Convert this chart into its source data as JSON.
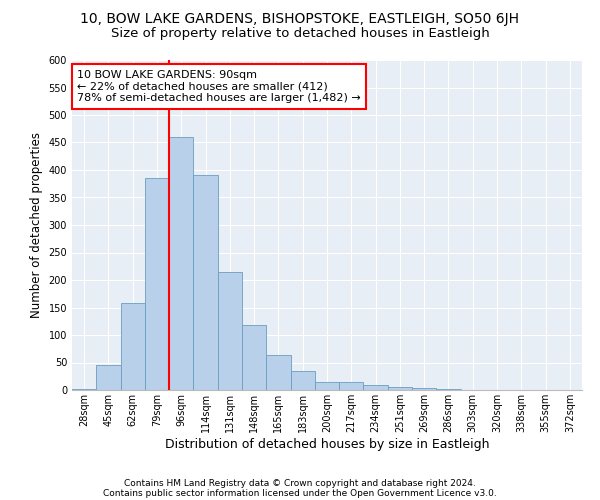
{
  "title": "10, BOW LAKE GARDENS, BISHOPSTOKE, EASTLEIGH, SO50 6JH",
  "subtitle": "Size of property relative to detached houses in Eastleigh",
  "xlabel": "Distribution of detached houses by size in Eastleigh",
  "ylabel": "Number of detached properties",
  "categories": [
    "28sqm",
    "45sqm",
    "62sqm",
    "79sqm",
    "96sqm",
    "114sqm",
    "131sqm",
    "148sqm",
    "165sqm",
    "183sqm",
    "200sqm",
    "217sqm",
    "234sqm",
    "251sqm",
    "269sqm",
    "286sqm",
    "303sqm",
    "320sqm",
    "338sqm",
    "355sqm",
    "372sqm"
  ],
  "values": [
    2,
    45,
    158,
    386,
    460,
    390,
    215,
    118,
    63,
    35,
    14,
    14,
    10,
    5,
    3,
    1,
    0,
    0,
    0,
    0,
    0
  ],
  "bar_color": "#b8d0ea",
  "bar_edge_color": "#6a9ec0",
  "vline_color": "red",
  "vline_x": 3.5,
  "annotation_text": "10 BOW LAKE GARDENS: 90sqm\n← 22% of detached houses are smaller (412)\n78% of semi-detached houses are larger (1,482) →",
  "annotation_box_color": "white",
  "annotation_box_edge_color": "red",
  "ylim": [
    0,
    600
  ],
  "yticks": [
    0,
    50,
    100,
    150,
    200,
    250,
    300,
    350,
    400,
    450,
    500,
    550,
    600
  ],
  "footnote1": "Contains HM Land Registry data © Crown copyright and database right 2024.",
  "footnote2": "Contains public sector information licensed under the Open Government Licence v3.0.",
  "background_color": "#e8eef5",
  "title_fontsize": 10,
  "subtitle_fontsize": 9.5,
  "tick_fontsize": 7,
  "ylabel_fontsize": 8.5,
  "xlabel_fontsize": 9,
  "footnote_fontsize": 6.5,
  "annotation_fontsize": 8
}
